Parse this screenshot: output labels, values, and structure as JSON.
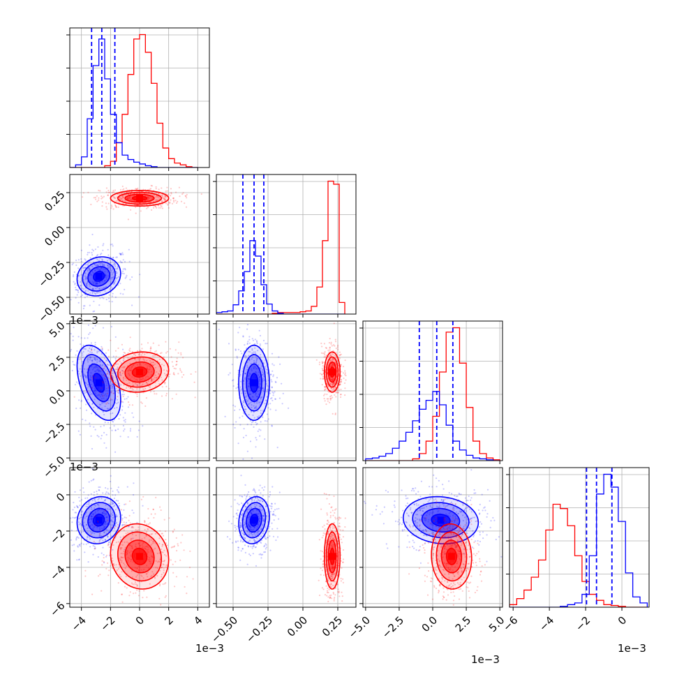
{
  "chart_data": {
    "type": "corner",
    "title": "",
    "series": [
      {
        "name": "blue",
        "color": "#0000ff"
      },
      {
        "name": "red",
        "color": "#ff0000"
      }
    ],
    "scale_labels": [
      "1e−3",
      "1e−3",
      "1e−3",
      "1e−3",
      "1e−3",
      "1e−3"
    ],
    "parameters": [
      {
        "range": [
          -4.8,
          4.8
        ],
        "ticks": [
          -4,
          -2,
          0,
          2,
          4
        ],
        "tick_labels": [
          "−4",
          "−2",
          "0",
          "2",
          "4"
        ]
      },
      {
        "range": [
          -0.62,
          0.38
        ],
        "ticks": [
          -0.5,
          -0.25,
          0.0,
          0.25
        ],
        "tick_labels": [
          "−0.50",
          "−0.25",
          "0.00",
          "0.25"
        ]
      },
      {
        "range": [
          -5.2,
          5.2
        ],
        "ticks": [
          -5.0,
          -2.5,
          0.0,
          2.5,
          5.0
        ],
        "tick_labels": [
          "−5.0",
          "−2.5",
          "0.0",
          "2.5",
          "5.0"
        ]
      },
      {
        "range": [
          -6.2,
          1.5
        ],
        "ticks": [
          -6,
          -4,
          -2,
          0
        ],
        "tick_labels": [
          "−6",
          "−4",
          "−2",
          "0"
        ]
      }
    ],
    "quantiles": [
      [
        -3.3,
        -2.6,
        -1.7
      ],
      [
        -0.43,
        -0.35,
        -0.28
      ],
      [
        -1.0,
        0.3,
        1.5
      ],
      [
        -1.95,
        -1.4,
        -0.55
      ]
    ],
    "histograms": [
      {
        "bin_edges": [
          -4.8,
          -4.4,
          -4.0,
          -3.6,
          -3.2,
          -2.8,
          -2.4,
          -2.0,
          -1.6,
          -1.2,
          -0.8,
          -0.4,
          0.0,
          0.4,
          0.8,
          1.2,
          1.6,
          2.0,
          2.4,
          2.8,
          3.2,
          3.6,
          4.0
        ],
        "counts": {
          "blue": [
            0,
            3,
            12,
            55,
            115,
            145,
            100,
            60,
            28,
            14,
            9,
            6,
            4,
            2,
            1,
            0,
            0,
            0,
            0,
            0,
            0,
            0
          ],
          "red": [
            0,
            0,
            0,
            0,
            0,
            0,
            2,
            7,
            28,
            60,
            105,
            145,
            150,
            130,
            95,
            50,
            22,
            10,
            5,
            3,
            1,
            0
          ]
        }
      },
      {
        "bin_edges": [
          -0.62,
          -0.58,
          -0.54,
          -0.5,
          -0.46,
          -0.42,
          -0.38,
          -0.34,
          -0.3,
          -0.26,
          -0.22,
          -0.18,
          -0.14,
          -0.1,
          -0.06,
          -0.02,
          0.02,
          0.06,
          0.1,
          0.14,
          0.18,
          0.22,
          0.26,
          0.3
        ],
        "counts": {
          "blue": [
            2,
            3,
            4,
            12,
            30,
            55,
            95,
            75,
            38,
            13,
            4,
            1,
            0,
            0,
            0,
            0,
            0,
            0,
            0,
            0,
            0,
            0,
            0
          ],
          "red": [
            0,
            0,
            0,
            0,
            0,
            0,
            0,
            0,
            0,
            0,
            1,
            2,
            2,
            2,
            2,
            3,
            4,
            10,
            35,
            95,
            172,
            168,
            15
          ]
        }
      },
      {
        "bin_edges": [
          -5.0,
          -4.5,
          -4.0,
          -3.5,
          -3.0,
          -2.5,
          -2.0,
          -1.5,
          -1.0,
          -0.5,
          0.0,
          0.5,
          1.0,
          1.5,
          2.0,
          2.5,
          3.0,
          3.5,
          4.0,
          4.5,
          5.0
        ],
        "counts": {
          "blue": [
            2,
            3,
            5,
            8,
            14,
            22,
            32,
            45,
            58,
            68,
            78,
            63,
            40,
            22,
            12,
            6,
            3,
            2,
            1,
            0
          ],
          "red": [
            0,
            0,
            0,
            0,
            0,
            0,
            0,
            2,
            8,
            22,
            50,
            100,
            145,
            150,
            110,
            60,
            22,
            8,
            3,
            1
          ]
        }
      },
      {
        "bin_edges": [
          -6.2,
          -5.8,
          -5.4,
          -5.0,
          -4.6,
          -4.2,
          -3.8,
          -3.4,
          -3.0,
          -2.6,
          -2.2,
          -1.8,
          -1.4,
          -1.0,
          -0.6,
          -0.2,
          0.2,
          0.6,
          1.0,
          1.4
        ],
        "counts": {
          "blue": [
            0,
            0,
            0,
            0,
            0,
            0,
            0,
            1,
            3,
            5,
            15,
            60,
            132,
            155,
            140,
            100,
            40,
            12,
            5
          ],
          "red": [
            3,
            10,
            20,
            35,
            55,
            90,
            120,
            115,
            95,
            60,
            30,
            15,
            8,
            3,
            2,
            1,
            0,
            0,
            0
          ]
        }
      }
    ],
    "pairs": [
      {
        "row": 1,
        "col": 0,
        "blue": {
          "center": [
            -2.8,
            -0.35
          ],
          "spread": [
            0.75,
            0.07
          ],
          "rho": 0.15
        },
        "red": {
          "center": [
            0.0,
            0.21
          ],
          "spread": [
            1.0,
            0.028
          ],
          "rho": 0.0
        }
      },
      {
        "row": 2,
        "col": 0,
        "blue": {
          "center": [
            -2.8,
            0.6
          ],
          "spread": [
            0.75,
            1.4
          ],
          "rho": -0.45
        },
        "red": {
          "center": [
            0.0,
            1.4
          ],
          "spread": [
            1.0,
            0.75
          ],
          "rho": 0.1
        }
      },
      {
        "row": 2,
        "col": 1,
        "blue": {
          "center": [
            -0.35,
            0.6
          ],
          "spread": [
            0.055,
            1.4
          ],
          "rho": 0.0
        },
        "red": {
          "center": [
            0.21,
            1.4
          ],
          "spread": [
            0.028,
            0.75
          ],
          "rho": 0.0
        }
      },
      {
        "row": 3,
        "col": 0,
        "blue": {
          "center": [
            -2.8,
            -1.4
          ],
          "spread": [
            0.75,
            0.65
          ],
          "rho": 0.1
        },
        "red": {
          "center": [
            0.0,
            -3.4
          ],
          "spread": [
            1.0,
            0.9
          ],
          "rho": -0.1
        }
      },
      {
        "row": 3,
        "col": 1,
        "blue": {
          "center": [
            -0.35,
            -1.4
          ],
          "spread": [
            0.055,
            0.65
          ],
          "rho": 0.15
        },
        "red": {
          "center": [
            0.21,
            -3.4
          ],
          "spread": [
            0.028,
            0.9
          ],
          "rho": 0.0
        }
      },
      {
        "row": 3,
        "col": 2,
        "blue": {
          "center": [
            0.6,
            -1.4
          ],
          "spread": [
            1.4,
            0.65
          ],
          "rho": -0.1
        },
        "red": {
          "center": [
            1.4,
            -3.4
          ],
          "spread": [
            0.75,
            0.9
          ],
          "rho": -0.05
        }
      }
    ],
    "contour_levels_sigma": [
      0.5,
      1.0,
      1.5,
      2.0
    ],
    "grid": true,
    "legend": "none"
  }
}
